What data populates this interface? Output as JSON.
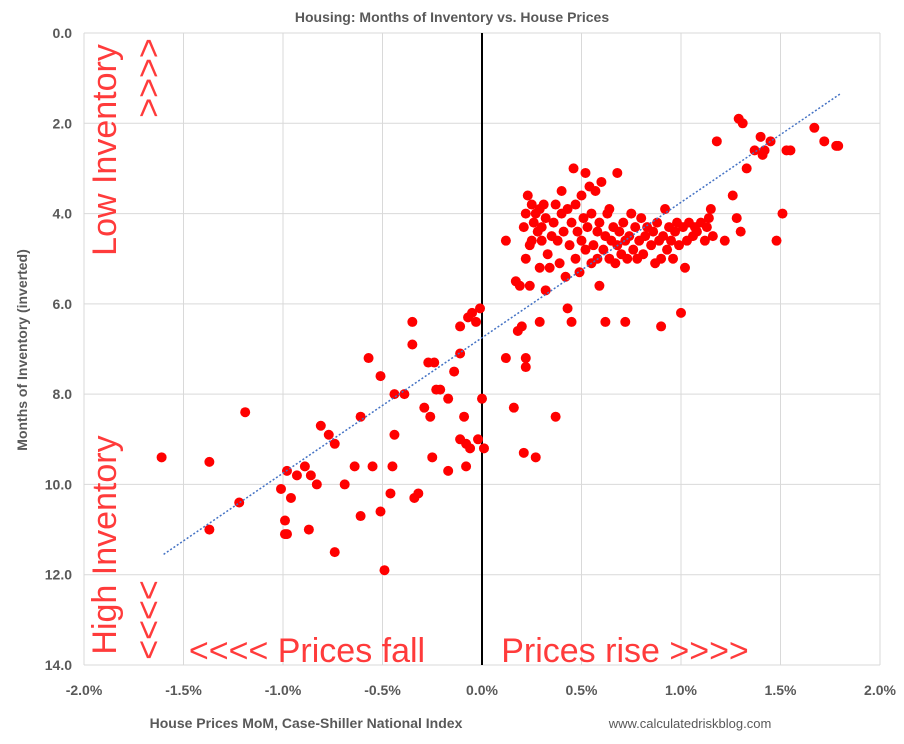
{
  "chart_data": {
    "type": "scatter",
    "title": "Housing: Months of Inventory vs. House Prices",
    "xlabel": "House Prices MoM, Case-Shiller National Index",
    "ylabel": "Months of Inventory (inverted)",
    "source": "www.calculatedriskblog.com",
    "xlim": [
      -0.02,
      0.02
    ],
    "ylim": [
      0,
      14
    ],
    "y_inverted": true,
    "x_ticks": [
      -0.02,
      -0.015,
      -0.01,
      -0.005,
      0.0,
      0.005,
      0.01,
      0.015,
      0.02
    ],
    "x_tick_labels": [
      "-2.0%",
      "-1.5%",
      "-1.0%",
      "-0.5%",
      "0.0%",
      "0.5%",
      "1.0%",
      "1.5%",
      "2.0%"
    ],
    "y_ticks": [
      0,
      2,
      4,
      6,
      8,
      10,
      12,
      14
    ],
    "y_tick_labels": [
      "0.0",
      "2.0",
      "4.0",
      "6.0",
      "8.0",
      "10.0",
      "12.0",
      "14.0"
    ],
    "grid": true,
    "colors": {
      "points": "#ff0000",
      "trend": "#4472c4",
      "grid": "#d9d9d9",
      "annotation": "#ff3b3b",
      "zero_line": "#000000"
    },
    "series": [
      {
        "name": "Months of Inventory vs House Prices MoM",
        "points": [
          [
            -0.0161,
            9.4
          ],
          [
            -0.0137,
            9.5
          ],
          [
            -0.0137,
            11.0
          ],
          [
            -0.0122,
            10.4
          ],
          [
            -0.0119,
            8.4
          ],
          [
            -0.0101,
            10.1
          ],
          [
            -0.0099,
            11.1
          ],
          [
            -0.0099,
            10.8
          ],
          [
            -0.0098,
            9.7
          ],
          [
            -0.0098,
            11.1
          ],
          [
            -0.0096,
            10.3
          ],
          [
            -0.0093,
            9.8
          ],
          [
            -0.0089,
            9.6
          ],
          [
            -0.0087,
            11.0
          ],
          [
            -0.0086,
            9.8
          ],
          [
            -0.0083,
            10.0
          ],
          [
            -0.0081,
            8.7
          ],
          [
            -0.0077,
            8.9
          ],
          [
            -0.0074,
            11.5
          ],
          [
            -0.0074,
            9.1
          ],
          [
            -0.0069,
            10.0
          ],
          [
            -0.0064,
            9.6
          ],
          [
            -0.0061,
            8.5
          ],
          [
            -0.0061,
            10.7
          ],
          [
            -0.0057,
            7.2
          ],
          [
            -0.0055,
            9.6
          ],
          [
            -0.0051,
            7.6
          ],
          [
            -0.0051,
            10.6
          ],
          [
            -0.0049,
            11.9
          ],
          [
            -0.0046,
            10.2
          ],
          [
            -0.0045,
            9.6
          ],
          [
            -0.0044,
            8.9
          ],
          [
            -0.0044,
            8.0
          ],
          [
            -0.0039,
            8.0
          ],
          [
            -0.0035,
            6.4
          ],
          [
            -0.0035,
            6.9
          ],
          [
            -0.0034,
            10.3
          ],
          [
            -0.0032,
            10.2
          ],
          [
            -0.0029,
            8.3
          ],
          [
            -0.0027,
            7.3
          ],
          [
            -0.0026,
            8.5
          ],
          [
            -0.0025,
            9.4
          ],
          [
            -0.0024,
            7.3
          ],
          [
            -0.0023,
            7.9
          ],
          [
            -0.0021,
            7.9
          ],
          [
            -0.0017,
            9.7
          ],
          [
            -0.0017,
            8.1
          ],
          [
            -0.0014,
            7.5
          ],
          [
            -0.0011,
            6.5
          ],
          [
            -0.0011,
            9.0
          ],
          [
            -0.0011,
            7.1
          ],
          [
            -0.0009,
            8.5
          ],
          [
            -0.0008,
            9.6
          ],
          [
            -0.0008,
            9.1
          ],
          [
            -0.0007,
            6.3
          ],
          [
            -0.0006,
            9.2
          ],
          [
            -0.0005,
            6.2
          ],
          [
            -0.0003,
            6.4
          ],
          [
            -0.0002,
            9.0
          ],
          [
            -0.0001,
            6.1
          ],
          [
            0.0,
            8.1
          ],
          [
            0.0001,
            9.2
          ],
          [
            0.0012,
            7.2
          ],
          [
            0.0012,
            4.6
          ],
          [
            0.0016,
            8.3
          ],
          [
            0.0017,
            5.5
          ],
          [
            0.0018,
            6.6
          ],
          [
            0.0019,
            5.6
          ],
          [
            0.002,
            6.5
          ],
          [
            0.0021,
            9.3
          ],
          [
            0.0021,
            4.3
          ],
          [
            0.0022,
            7.4
          ],
          [
            0.0022,
            7.2
          ],
          [
            0.0022,
            5.0
          ],
          [
            0.0022,
            4.0
          ],
          [
            0.0023,
            3.6
          ],
          [
            0.0024,
            4.7
          ],
          [
            0.0024,
            5.6
          ],
          [
            0.0025,
            4.6
          ],
          [
            0.0025,
            3.8
          ],
          [
            0.0026,
            4.2
          ],
          [
            0.0027,
            9.4
          ],
          [
            0.0027,
            4.0
          ],
          [
            0.0028,
            4.4
          ],
          [
            0.0029,
            6.4
          ],
          [
            0.0029,
            5.2
          ],
          [
            0.0029,
            3.9
          ],
          [
            0.003,
            4.6
          ],
          [
            0.003,
            4.3
          ],
          [
            0.0031,
            3.8
          ],
          [
            0.0032,
            5.7
          ],
          [
            0.0032,
            4.1
          ],
          [
            0.0033,
            4.9
          ],
          [
            0.0034,
            5.2
          ],
          [
            0.0035,
            4.5
          ],
          [
            0.0036,
            4.2
          ],
          [
            0.0037,
            8.5
          ],
          [
            0.0037,
            3.8
          ],
          [
            0.0038,
            4.6
          ],
          [
            0.0039,
            5.1
          ],
          [
            0.004,
            3.5
          ],
          [
            0.004,
            4.0
          ],
          [
            0.0041,
            4.4
          ],
          [
            0.0042,
            5.4
          ],
          [
            0.0043,
            6.1
          ],
          [
            0.0043,
            3.9
          ],
          [
            0.0044,
            4.7
          ],
          [
            0.0045,
            6.4
          ],
          [
            0.0045,
            4.2
          ],
          [
            0.0046,
            3.0
          ],
          [
            0.0047,
            5.0
          ],
          [
            0.0047,
            3.8
          ],
          [
            0.0048,
            4.4
          ],
          [
            0.0049,
            5.3
          ],
          [
            0.005,
            4.6
          ],
          [
            0.005,
            3.6
          ],
          [
            0.0051,
            4.1
          ],
          [
            0.0052,
            3.1
          ],
          [
            0.0052,
            4.8
          ],
          [
            0.0053,
            4.3
          ],
          [
            0.0054,
            3.4
          ],
          [
            0.0055,
            5.1
          ],
          [
            0.0055,
            4.0
          ],
          [
            0.0056,
            4.7
          ],
          [
            0.0057,
            3.5
          ],
          [
            0.0058,
            4.4
          ],
          [
            0.0058,
            5.0
          ],
          [
            0.0059,
            5.6
          ],
          [
            0.0059,
            4.2
          ],
          [
            0.006,
            3.3
          ],
          [
            0.0061,
            4.8
          ],
          [
            0.0062,
            6.4
          ],
          [
            0.0062,
            4.5
          ],
          [
            0.0063,
            4.0
          ],
          [
            0.0064,
            5.0
          ],
          [
            0.0064,
            3.9
          ],
          [
            0.0065,
            4.6
          ],
          [
            0.0066,
            4.3
          ],
          [
            0.0067,
            5.1
          ],
          [
            0.0068,
            4.7
          ],
          [
            0.0068,
            3.1
          ],
          [
            0.0069,
            4.4
          ],
          [
            0.007,
            4.9
          ],
          [
            0.0071,
            4.2
          ],
          [
            0.0072,
            6.4
          ],
          [
            0.0072,
            4.6
          ],
          [
            0.0073,
            5.0
          ],
          [
            0.0074,
            4.5
          ],
          [
            0.0075,
            4.0
          ],
          [
            0.0076,
            4.8
          ],
          [
            0.0077,
            4.3
          ],
          [
            0.0078,
            5.0
          ],
          [
            0.0079,
            4.6
          ],
          [
            0.008,
            4.1
          ],
          [
            0.0081,
            4.9
          ],
          [
            0.0082,
            4.5
          ],
          [
            0.0083,
            4.3
          ],
          [
            0.0085,
            4.7
          ],
          [
            0.0086,
            4.4
          ],
          [
            0.0087,
            5.1
          ],
          [
            0.0088,
            4.2
          ],
          [
            0.0089,
            4.6
          ],
          [
            0.009,
            6.5
          ],
          [
            0.009,
            5.0
          ],
          [
            0.0091,
            4.5
          ],
          [
            0.0092,
            3.9
          ],
          [
            0.0093,
            4.8
          ],
          [
            0.0094,
            4.3
          ],
          [
            0.0095,
            4.6
          ],
          [
            0.0096,
            5.0
          ],
          [
            0.0097,
            4.4
          ],
          [
            0.0098,
            4.2
          ],
          [
            0.0099,
            4.7
          ],
          [
            0.01,
            6.2
          ],
          [
            0.0101,
            4.3
          ],
          [
            0.0102,
            5.2
          ],
          [
            0.0103,
            4.6
          ],
          [
            0.0104,
            4.2
          ],
          [
            0.0106,
            4.5
          ],
          [
            0.0107,
            4.3
          ],
          [
            0.0108,
            4.4
          ],
          [
            0.011,
            4.2
          ],
          [
            0.0112,
            4.6
          ],
          [
            0.0113,
            4.3
          ],
          [
            0.0114,
            4.1
          ],
          [
            0.0115,
            3.9
          ],
          [
            0.0116,
            4.5
          ],
          [
            0.0118,
            2.4
          ],
          [
            0.0122,
            4.6
          ],
          [
            0.0126,
            3.6
          ],
          [
            0.0128,
            4.1
          ],
          [
            0.0129,
            1.9
          ],
          [
            0.013,
            4.4
          ],
          [
            0.0131,
            2.0
          ],
          [
            0.0133,
            3.0
          ],
          [
            0.0137,
            2.6
          ],
          [
            0.014,
            2.3
          ],
          [
            0.0141,
            2.7
          ],
          [
            0.0142,
            2.6
          ],
          [
            0.0145,
            2.4
          ],
          [
            0.0148,
            4.6
          ],
          [
            0.0151,
            4.0
          ],
          [
            0.0153,
            2.6
          ],
          [
            0.0155,
            2.6
          ],
          [
            0.0167,
            2.1
          ],
          [
            0.0172,
            2.4
          ],
          [
            0.0178,
            2.5
          ],
          [
            0.0179,
            2.5
          ]
        ]
      }
    ],
    "trendline": {
      "type": "linear",
      "x": [
        -0.016,
        0.018
      ],
      "y": [
        11.55,
        1.35
      ]
    },
    "zero_line_x": 0.0,
    "annotations": {
      "low_inventory": "Low Inventory",
      "low_arrows": ">>>>",
      "high_inventory": "High Inventory",
      "high_arrows": "<<<<",
      "prices_fall": "<<<< Prices fall",
      "prices_rise": "Prices rise >>>>"
    }
  }
}
